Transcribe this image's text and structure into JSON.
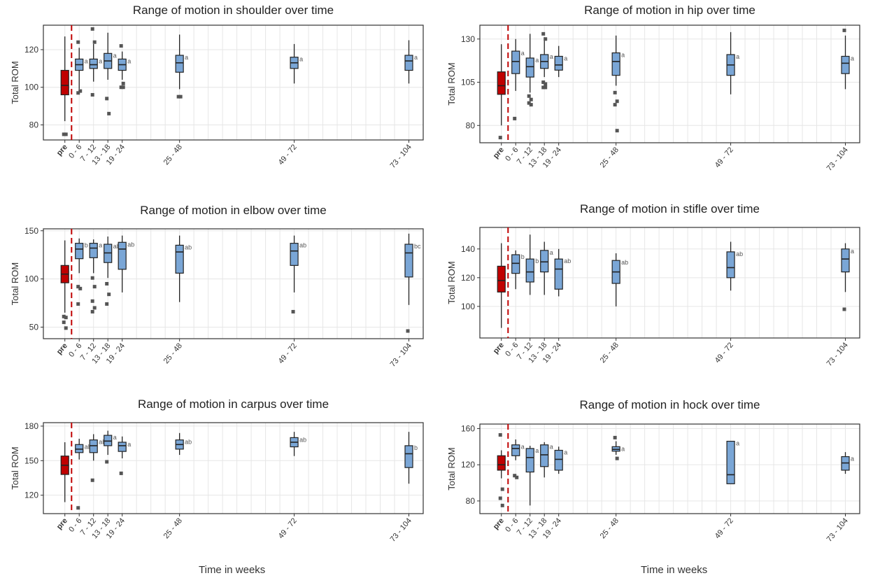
{
  "figure": {
    "xlabel": "Time in weeks"
  },
  "colors": {
    "pre": "#c00000",
    "post": "#7aa6d6",
    "dashed": "#c00000",
    "grid": "#e6e6e6",
    "outlier": "#555555"
  },
  "chart_data": [
    {
      "type": "boxplot",
      "title": "Range of motion in shoulder over time",
      "ylabel": "Total ROM",
      "ylim": [
        72,
        133
      ],
      "yticks": [
        80,
        100,
        120
      ],
      "categories": [
        "pre",
        "0 - 6",
        "7 - 12",
        "13 - 18",
        "19 - 24",
        "25 - 48",
        "49 - 72",
        "73 - 104"
      ],
      "x_positions": [
        0,
        3,
        6,
        9,
        12,
        24,
        48,
        72
      ],
      "boxes": [
        {
          "min": 82,
          "q1": 96,
          "median": 101,
          "q3": 109,
          "max": 127,
          "outliers": [
            75,
            75
          ],
          "letter": ""
        },
        {
          "min": 99,
          "q1": 109,
          "median": 112,
          "q3": 115,
          "max": 121,
          "outliers": [
            124,
            98,
            97
          ],
          "letter": "a"
        },
        {
          "min": 103,
          "q1": 110,
          "median": 112,
          "q3": 115,
          "max": 123,
          "outliers": [
            131,
            124,
            96
          ],
          "letter": "a"
        },
        {
          "min": 104,
          "q1": 110,
          "median": 114,
          "q3": 118,
          "max": 129,
          "outliers": [
            94,
            86
          ],
          "letter": "a"
        },
        {
          "min": 104,
          "q1": 109,
          "median": 112,
          "q3": 115,
          "max": 119,
          "outliers": [
            122,
            102,
            100,
            100
          ],
          "letter": "a"
        },
        {
          "min": 99,
          "q1": 108,
          "median": 113,
          "q3": 117,
          "max": 128,
          "outliers": [
            95,
            95
          ],
          "letter": "a"
        },
        {
          "min": 102,
          "q1": 110,
          "median": 113,
          "q3": 116,
          "max": 123,
          "outliers": [],
          "letter": "a"
        },
        {
          "min": 102,
          "q1": 109,
          "median": 114,
          "q3": 117,
          "max": 125,
          "outliers": [],
          "letter": "a"
        }
      ]
    },
    {
      "type": "boxplot",
      "title": "Range of motion in hip over time",
      "ylabel": "Total ROM",
      "ylim": [
        70,
        138
      ],
      "yticks": [
        80,
        105,
        130
      ],
      "categories": [
        "pre",
        "0 - 6",
        "7 - 12",
        "13 - 18",
        "19 - 24",
        "25 - 48",
        "49 - 72",
        "73 - 104"
      ],
      "x_positions": [
        0,
        3,
        6,
        9,
        12,
        24,
        48,
        72
      ],
      "boxes": [
        {
          "min": 80,
          "q1": 98,
          "median": 103,
          "q3": 111,
          "max": 127,
          "outliers": [
            73
          ],
          "letter": ""
        },
        {
          "min": 100,
          "q1": 110,
          "median": 117,
          "q3": 123,
          "max": 130,
          "outliers": [
            84
          ],
          "letter": "a"
        },
        {
          "min": 99,
          "q1": 108,
          "median": 114,
          "q3": 119,
          "max": 133,
          "outliers": [
            97,
            95,
            93,
            92
          ],
          "letter": "a"
        },
        {
          "min": 108,
          "q1": 113,
          "median": 117,
          "q3": 121,
          "max": 131,
          "outliers": [
            133,
            130,
            105,
            104,
            102,
            102
          ],
          "letter": "a"
        },
        {
          "min": 108,
          "q1": 112,
          "median": 115,
          "q3": 120,
          "max": 126,
          "outliers": [],
          "letter": "a"
        },
        {
          "min": 103,
          "q1": 109,
          "median": 117,
          "q3": 122,
          "max": 132,
          "outliers": [
            99,
            94,
            92,
            77
          ],
          "letter": "a"
        },
        {
          "min": 98,
          "q1": 109,
          "median": 115,
          "q3": 121,
          "max": 134,
          "outliers": [],
          "letter": "a"
        },
        {
          "min": 101,
          "q1": 110,
          "median": 116,
          "q3": 120,
          "max": 132,
          "outliers": [
            135
          ],
          "letter": "a"
        }
      ]
    },
    {
      "type": "boxplot",
      "title": "Range of motion in elbow over time",
      "ylabel": "Total ROM",
      "ylim": [
        38,
        152
      ],
      "yticks": [
        50,
        100,
        150
      ],
      "categories": [
        "pre",
        "0 - 6",
        "7 - 12",
        "13 - 18",
        "19 - 24",
        "25 - 48",
        "49 - 72",
        "73 - 104"
      ],
      "x_positions": [
        0,
        3,
        6,
        9,
        12,
        24,
        48,
        72
      ],
      "boxes": [
        {
          "min": 65,
          "q1": 96,
          "median": 105,
          "q3": 114,
          "max": 140,
          "outliers": [
            61,
            60,
            55,
            49
          ],
          "letter": ""
        },
        {
          "min": 106,
          "q1": 121,
          "median": 131,
          "q3": 137,
          "max": 142,
          "outliers": [
            92,
            90,
            74
          ],
          "letter": "b"
        },
        {
          "min": 106,
          "q1": 122,
          "median": 132,
          "q3": 137,
          "max": 141,
          "outliers": [
            101,
            92,
            77,
            70,
            66
          ],
          "letter": "a"
        },
        {
          "min": 101,
          "q1": 117,
          "median": 127,
          "q3": 136,
          "max": 144,
          "outliers": [
            95,
            84,
            74
          ],
          "letter": "ab"
        },
        {
          "min": 86,
          "q1": 110,
          "median": 131,
          "q3": 138,
          "max": 145,
          "outliers": [],
          "letter": "ab"
        },
        {
          "min": 76,
          "q1": 106,
          "median": 128,
          "q3": 135,
          "max": 145,
          "outliers": [],
          "letter": "ab"
        },
        {
          "min": 86,
          "q1": 114,
          "median": 129,
          "q3": 137,
          "max": 145,
          "outliers": [
            66
          ],
          "letter": "ab"
        },
        {
          "min": 73,
          "q1": 102,
          "median": 127,
          "q3": 136,
          "max": 147,
          "outliers": [
            46
          ],
          "letter": "bc"
        }
      ]
    },
    {
      "type": "boxplot",
      "title": "Range of motion in stifle over time",
      "ylabel": "Total ROM",
      "ylim": [
        78,
        155
      ],
      "yticks": [
        100,
        120,
        140
      ],
      "categories": [
        "pre",
        "0 - 6",
        "7 - 12",
        "13 - 18",
        "19 - 24",
        "25 - 48",
        "49 - 72",
        "73 - 104"
      ],
      "x_positions": [
        0,
        3,
        6,
        9,
        12,
        24,
        48,
        72
      ],
      "boxes": [
        {
          "min": 85,
          "q1": 110,
          "median": 118,
          "q3": 128,
          "max": 144,
          "outliers": [],
          "letter": ""
        },
        {
          "min": 112,
          "q1": 123,
          "median": 130,
          "q3": 136,
          "max": 139,
          "outliers": [],
          "letter": "b"
        },
        {
          "min": 108,
          "q1": 117,
          "median": 124,
          "q3": 133,
          "max": 150,
          "outliers": [],
          "letter": "b"
        },
        {
          "min": 108,
          "q1": 124,
          "median": 131,
          "q3": 139,
          "max": 145,
          "outliers": [],
          "letter": "a"
        },
        {
          "min": 107,
          "q1": 112,
          "median": 126,
          "q3": 133,
          "max": 140,
          "outliers": [],
          "letter": "ab"
        },
        {
          "min": 100,
          "q1": 116,
          "median": 124,
          "q3": 132,
          "max": 137,
          "outliers": [],
          "letter": "ab"
        },
        {
          "min": 111,
          "q1": 120,
          "median": 127,
          "q3": 138,
          "max": 145,
          "outliers": [],
          "letter": "ab"
        },
        {
          "min": 110,
          "q1": 124,
          "median": 133,
          "q3": 140,
          "max": 144,
          "outliers": [
            98
          ],
          "letter": "a"
        }
      ]
    },
    {
      "type": "boxplot",
      "title": "Range of motion in carpus over time",
      "ylabel": "Total ROM",
      "ylim": [
        104,
        183
      ],
      "yticks": [
        120,
        150,
        180
      ],
      "categories": [
        "pre",
        "0 - 6",
        "7 - 12",
        "13 - 18",
        "19 - 24",
        "25 - 48",
        "49 - 72",
        "73 - 104"
      ],
      "x_positions": [
        0,
        3,
        6,
        9,
        12,
        24,
        48,
        72
      ],
      "boxes": [
        {
          "min": 114,
          "q1": 138,
          "median": 146,
          "q3": 154,
          "max": 166,
          "outliers": [],
          "letter": ""
        },
        {
          "min": 151,
          "q1": 157,
          "median": 160,
          "q3": 164,
          "max": 169,
          "outliers": [
            109
          ],
          "letter": "ab"
        },
        {
          "min": 150,
          "q1": 157,
          "median": 163,
          "q3": 168,
          "max": 173,
          "outliers": [
            133
          ],
          "letter": "ab"
        },
        {
          "min": 155,
          "q1": 163,
          "median": 167,
          "q3": 172,
          "max": 176,
          "outliers": [
            149
          ],
          "letter": "a"
        },
        {
          "min": 152,
          "q1": 158,
          "median": 163,
          "q3": 166,
          "max": 171,
          "outliers": [
            139
          ],
          "letter": "a"
        },
        {
          "min": 155,
          "q1": 160,
          "median": 164,
          "q3": 168,
          "max": 174,
          "outliers": [],
          "letter": "ab"
        },
        {
          "min": 154,
          "q1": 162,
          "median": 166,
          "q3": 170,
          "max": 175,
          "outliers": [],
          "letter": "ab"
        },
        {
          "min": 130,
          "q1": 144,
          "median": 156,
          "q3": 163,
          "max": 175,
          "outliers": [],
          "letter": "b"
        }
      ]
    },
    {
      "type": "boxplot",
      "title": "Range of motion in hock over time",
      "ylabel": "Total ROM",
      "ylim": [
        66,
        165
      ],
      "yticks": [
        80,
        120,
        160
      ],
      "categories": [
        "pre",
        "0 - 6",
        "7 - 12",
        "13 - 18",
        "19 - 24",
        "25 - 48",
        "49 - 72",
        "73 - 104"
      ],
      "x_positions": [
        0,
        3,
        6,
        9,
        12,
        24,
        48,
        72
      ],
      "boxes": [
        {
          "min": 105,
          "q1": 114,
          "median": 120,
          "q3": 130,
          "max": 136,
          "outliers": [
            153,
            93,
            83,
            75
          ],
          "letter": ""
        },
        {
          "min": 125,
          "q1": 130,
          "median": 138,
          "q3": 142,
          "max": 148,
          "outliers": [
            108,
            106
          ],
          "letter": "a"
        },
        {
          "min": 75,
          "q1": 112,
          "median": 128,
          "q3": 138,
          "max": 141,
          "outliers": [],
          "letter": "a"
        },
        {
          "min": 106,
          "q1": 118,
          "median": 131,
          "q3": 142,
          "max": 145,
          "outliers": [],
          "letter": "a"
        },
        {
          "min": 110,
          "q1": 114,
          "median": 126,
          "q3": 136,
          "max": 140,
          "outliers": [],
          "letter": "a"
        },
        {
          "min": 131,
          "q1": 135,
          "median": 137,
          "q3": 140,
          "max": 146,
          "outliers": [
            150,
            127
          ],
          "letter": "a"
        },
        {
          "min": 99,
          "q1": 99,
          "median": 109,
          "q3": 146,
          "max": 146,
          "outliers": [],
          "letter": "a"
        },
        {
          "min": 110,
          "q1": 114,
          "median": 122,
          "q3": 129,
          "max": 134,
          "outliers": [],
          "letter": "a"
        }
      ]
    }
  ]
}
